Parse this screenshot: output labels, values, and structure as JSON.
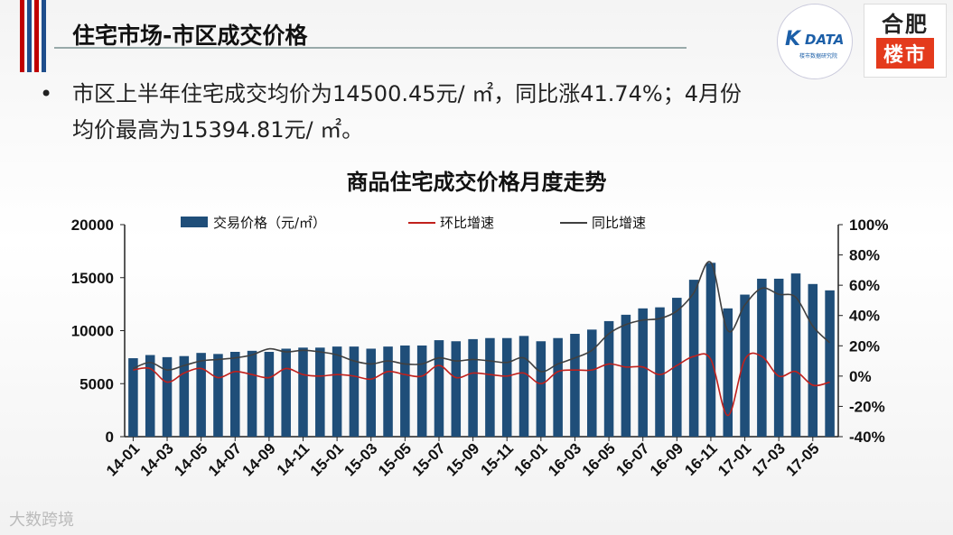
{
  "header": {
    "title": "住宅市场-市区成交价格"
  },
  "logos": {
    "kdata_mark": "K",
    "kdata_text": "DATA",
    "kdata_sub": "楼市数据研究院",
    "hefei_top": "合肥",
    "hefei_bottom": "楼市"
  },
  "bullet": {
    "line1": "市区上半年住宅成交均价为14500.45元/ ㎡，同比涨41.74%；4月份",
    "line2": "均价最高为15394.81元/ ㎡。"
  },
  "watermark": "大数跨境",
  "colors": {
    "bar": "#1f4e79",
    "mom_line": "#c0201c",
    "yoy_line": "#404040"
  },
  "chart_data": {
    "type": "bar",
    "title": "商品住宅成交价格月度走势",
    "legend": [
      "交易价格（元/㎡）",
      "环比增速",
      "同比增速"
    ],
    "legend_position": "top",
    "x": [
      "14-01",
      "14-02",
      "14-03",
      "14-04",
      "14-05",
      "14-06",
      "14-07",
      "14-08",
      "14-09",
      "14-10",
      "14-11",
      "14-12",
      "15-01",
      "15-02",
      "15-03",
      "15-04",
      "15-05",
      "15-06",
      "15-07",
      "15-08",
      "15-09",
      "15-10",
      "15-11",
      "15-12",
      "16-01",
      "16-02",
      "16-03",
      "16-04",
      "16-05",
      "16-06",
      "16-07",
      "16-08",
      "16-09",
      "16-10",
      "16-11",
      "16-12",
      "17-01",
      "17-02",
      "17-03",
      "17-04",
      "17-05",
      "17-06"
    ],
    "x_tick_labels": [
      "14-01",
      "14-03",
      "14-05",
      "14-07",
      "14-09",
      "14-11",
      "15-01",
      "15-03",
      "15-05",
      "15-07",
      "15-09",
      "15-11",
      "16-01",
      "16-03",
      "16-05",
      "16-07",
      "16-09",
      "16-11",
      "17-01",
      "17-03",
      "17-05"
    ],
    "y_left": {
      "min": 0,
      "max": 20000,
      "ticks": [
        "0",
        "5000",
        "10000",
        "15000",
        "20000"
      ]
    },
    "y_right": {
      "min": -40,
      "max": 100,
      "ticks": [
        "-40%",
        "-20%",
        "0%",
        "20%",
        "40%",
        "60%",
        "80%",
        "100%"
      ]
    },
    "series": [
      {
        "name": "交易价格（元/㎡）",
        "axis": "left",
        "kind": "bar",
        "values": [
          7400,
          7700,
          7500,
          7600,
          7900,
          7800,
          8000,
          8100,
          8000,
          8300,
          8400,
          8400,
          8500,
          8500,
          8300,
          8500,
          8600,
          8600,
          9100,
          9000,
          9200,
          9300,
          9300,
          9500,
          9000,
          9300,
          9700,
          10100,
          10900,
          11500,
          12100,
          12200,
          13100,
          14800,
          16400,
          12100,
          13400,
          14900,
          14900,
          15394.81,
          14400,
          13800
        ]
      },
      {
        "name": "环比增速",
        "axis": "right",
        "kind": "line",
        "values": [
          4,
          5,
          -4,
          2,
          5,
          -1,
          3,
          1,
          -1,
          5,
          1,
          0,
          1,
          0,
          -2,
          3,
          1,
          0,
          7,
          -1,
          2,
          1,
          0,
          2,
          -5,
          3,
          4,
          4,
          8,
          6,
          6,
          1,
          7,
          13,
          11,
          -26,
          11,
          13,
          0,
          3,
          -6,
          -4
        ]
      },
      {
        "name": "同比增速",
        "axis": "right",
        "kind": "line",
        "values": [
          5,
          9,
          4,
          7,
          10,
          11,
          12,
          14,
          18,
          16,
          17,
          16,
          14,
          10,
          8,
          10,
          8,
          8,
          12,
          10,
          11,
          10,
          9,
          12,
          3,
          8,
          12,
          17,
          28,
          34,
          37,
          38,
          43,
          55,
          75,
          30,
          47,
          58,
          54,
          52,
          33,
          22
        ]
      }
    ]
  }
}
